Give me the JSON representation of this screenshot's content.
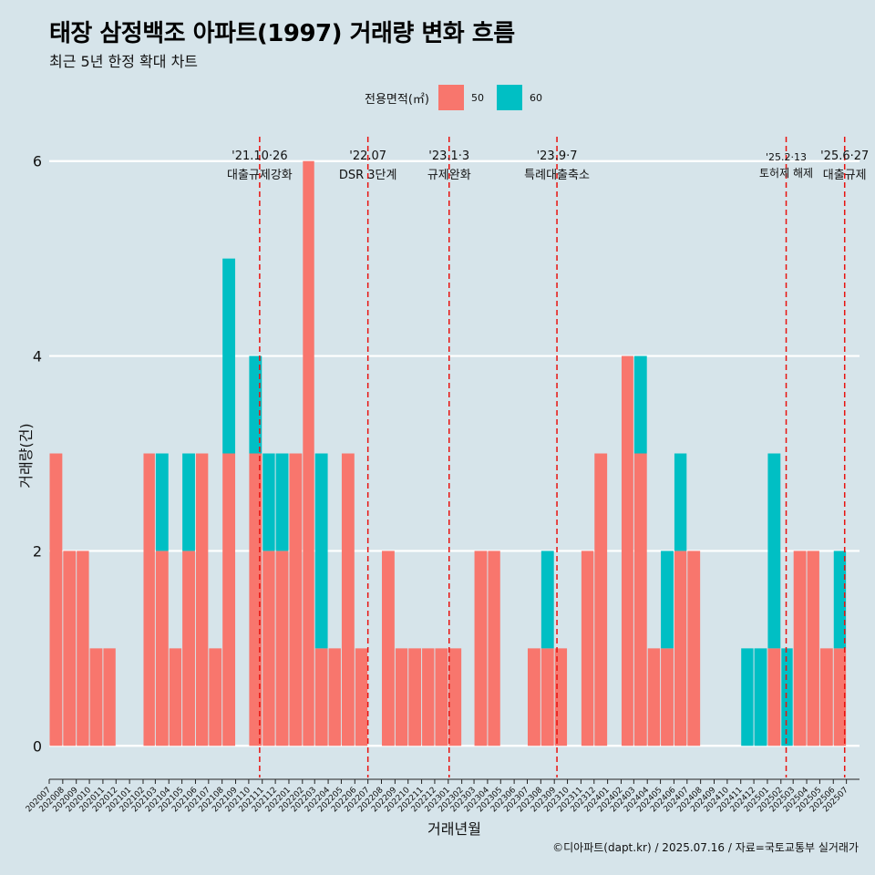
{
  "title": "태장 삼정백조 아파트(1997) 거래량 변화 흐름",
  "subtitle": "최근 5년 한정 확대 차트",
  "caption": "©디아파트(dapt.kr) / 2025.07.16 / 자료=국토교통부 실거래가",
  "legend": {
    "title": "전용면적(㎡)",
    "items": [
      {
        "label": "50",
        "color": "#f8766d"
      },
      {
        "label": "60",
        "color": "#00bfc4"
      }
    ]
  },
  "chart_data": {
    "type": "bar",
    "xlabel": "거래년월",
    "ylabel": "거래량(건)",
    "ylim": [
      -0.25,
      6.25
    ],
    "yticks": [
      0,
      2,
      4,
      6
    ],
    "grid": true,
    "legend_position": "top",
    "x_range": [
      "2020-07-01",
      "2025-07-31"
    ],
    "x_tick_labels": [
      "202007",
      "202008",
      "202009",
      "202010",
      "202011",
      "202012",
      "202101",
      "202102",
      "202103",
      "202104",
      "202105",
      "202106",
      "202107",
      "202108",
      "202109",
      "202110",
      "202111",
      "202112",
      "202201",
      "202202",
      "202203",
      "202204",
      "202205",
      "202206",
      "202207",
      "202208",
      "202209",
      "202210",
      "202211",
      "202212",
      "202301",
      "202302",
      "202303",
      "202304",
      "202305",
      "202306",
      "202307",
      "202308",
      "202309",
      "202310",
      "202311",
      "202312",
      "202401",
      "202402",
      "202403",
      "202404",
      "202405",
      "202406",
      "202407",
      "202408",
      "202409",
      "202410",
      "202411",
      "202412",
      "202501",
      "202502",
      "202503",
      "202504",
      "202505",
      "202506",
      "202507"
    ],
    "series": [
      {
        "name": "50",
        "color": "#f8766d",
        "points": [
          [
            "2020-07",
            3
          ],
          [
            "2020-08",
            2
          ],
          [
            "2020-09",
            2
          ],
          [
            "2020-10",
            1
          ],
          [
            "2020-11",
            1
          ],
          [
            "2021-02",
            3
          ],
          [
            "2021-03",
            2
          ],
          [
            "2021-04",
            1
          ],
          [
            "2021-05",
            2
          ],
          [
            "2021-06",
            3
          ],
          [
            "2021-07",
            1
          ],
          [
            "2021-08",
            3
          ],
          [
            "2021-10",
            3
          ],
          [
            "2021-11",
            2
          ],
          [
            "2021-12",
            2
          ],
          [
            "2022-01",
            3
          ],
          [
            "2022-02",
            6
          ],
          [
            "2022-03",
            1
          ],
          [
            "2022-04",
            1
          ],
          [
            "2022-05",
            3
          ],
          [
            "2022-06",
            1
          ],
          [
            "2022-08",
            2
          ],
          [
            "2022-09",
            1
          ],
          [
            "2022-10",
            1
          ],
          [
            "2022-11",
            1
          ],
          [
            "2022-12",
            1
          ],
          [
            "2023-01",
            1
          ],
          [
            "2023-03",
            2
          ],
          [
            "2023-04",
            2
          ],
          [
            "2023-07",
            1
          ],
          [
            "2023-08",
            1
          ],
          [
            "2023-09",
            1
          ],
          [
            "2023-11",
            2
          ],
          [
            "2023-12",
            3
          ],
          [
            "2024-02",
            4
          ],
          [
            "2024-03",
            3
          ],
          [
            "2024-04",
            1
          ],
          [
            "2024-05",
            1
          ],
          [
            "2024-06",
            2
          ],
          [
            "2024-07",
            2
          ],
          [
            "2025-01",
            1
          ],
          [
            "2025-03",
            2
          ],
          [
            "2025-04",
            2
          ],
          [
            "2025-05",
            1
          ],
          [
            "2025-06",
            1
          ]
        ]
      },
      {
        "name": "60",
        "color": "#00bfc4",
        "points": [
          [
            "2021-03",
            1
          ],
          [
            "2021-05",
            1
          ],
          [
            "2021-08",
            2
          ],
          [
            "2021-10",
            1
          ],
          [
            "2021-11",
            1
          ],
          [
            "2021-12",
            1
          ],
          [
            "2022-03",
            2
          ],
          [
            "2023-08",
            1
          ],
          [
            "2024-03",
            1
          ],
          [
            "2024-05",
            1
          ],
          [
            "2024-06",
            1
          ],
          [
            "2024-11",
            1
          ],
          [
            "2024-12",
            1
          ],
          [
            "2025-01",
            2
          ],
          [
            "2025-02",
            1
          ],
          [
            "2025-06",
            1
          ]
        ]
      }
    ],
    "annotations": [
      {
        "date": "2021-10-26",
        "line1": "'21.10·26",
        "line2": "대출규제강화"
      },
      {
        "date": "2022-07-01",
        "line1": "'22.07",
        "line2": "DSR 3단계"
      },
      {
        "date": "2023-01-03",
        "line1": "'23.1·3",
        "line2": "규제완화"
      },
      {
        "date": "2023-09-07",
        "line1": "'23.9·7",
        "line2": "특례대출축소"
      },
      {
        "date": "2025-02-13",
        "line1": "'25.2·13",
        "line2": "토허제 해제"
      },
      {
        "date": "2025-06-27",
        "line1": "'25.6·27",
        "line2": "대출규제"
      }
    ],
    "annotation_color": "#e8120f"
  }
}
